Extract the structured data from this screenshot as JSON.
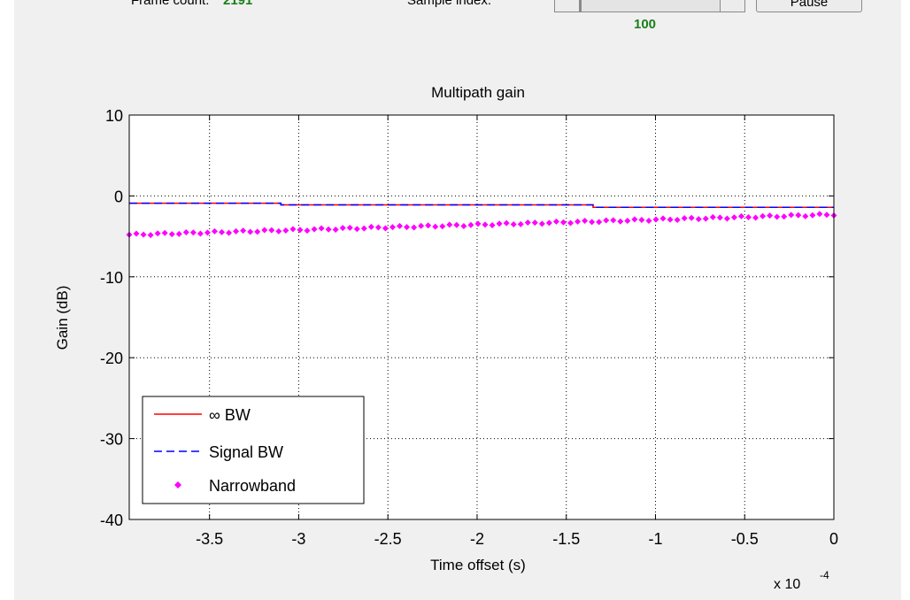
{
  "controls": {
    "frame_count_label": "Frame count:",
    "frame_count_value": "2191",
    "sample_index_label": "Sample index:",
    "sample_index_value": "100",
    "pause_label": "Pause"
  },
  "chart_data": {
    "type": "line",
    "title": "Multipath gain",
    "xlabel": "Time offset (s)",
    "ylabel": "Gain (dB)",
    "x_exponent_label": "x 10",
    "x_exponent": "-4",
    "xlim": [
      -3.95,
      0
    ],
    "ylim": [
      -40,
      10
    ],
    "x_ticks": [
      -3.5,
      -3,
      -2.5,
      -2,
      -1.5,
      -1,
      -0.5,
      0
    ],
    "x_tick_labels": [
      "-3.5",
      "-3",
      "-2.5",
      "-2",
      "-1.5",
      "-1",
      "-0.5",
      "0"
    ],
    "y_ticks": [
      -40,
      -30,
      -20,
      -10,
      0,
      10
    ],
    "y_tick_labels": [
      "-40",
      "-30",
      "-20",
      "-10",
      "0",
      "10"
    ],
    "grid": true,
    "legend_position": "bottom-left",
    "series": [
      {
        "name": "∞ BW",
        "style": "solid",
        "color": "#ff0000",
        "x": [
          -3.95,
          -3.1,
          -3.1,
          -1.35,
          -1.35,
          0
        ],
        "y": [
          -0.9,
          -0.9,
          -1.1,
          -1.1,
          -1.4,
          -1.4
        ]
      },
      {
        "name": "Signal BW",
        "style": "dashed",
        "color": "#0000ff",
        "x": [
          -3.95,
          -3.1,
          -3.1,
          -1.35,
          -1.35,
          0
        ],
        "y": [
          -0.9,
          -0.9,
          -1.1,
          -1.1,
          -1.4,
          -1.4
        ]
      },
      {
        "name": "Narrowband",
        "style": "markers",
        "color": "#ff00ff",
        "x_start": -3.95,
        "x_end": 0,
        "count": 100,
        "y_start": -4.8,
        "y_end": -2.3
      }
    ]
  }
}
